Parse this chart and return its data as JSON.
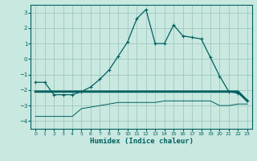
{
  "xlabel": "Humidex (Indice chaleur)",
  "xlim": [
    -0.5,
    23.5
  ],
  "ylim": [
    -4.5,
    3.5
  ],
  "yticks": [
    -4,
    -3,
    -2,
    -1,
    0,
    1,
    2,
    3
  ],
  "xticks": [
    0,
    1,
    2,
    3,
    4,
    5,
    6,
    7,
    8,
    9,
    10,
    11,
    12,
    13,
    14,
    15,
    16,
    17,
    18,
    19,
    20,
    21,
    22,
    23
  ],
  "bg_color": "#c8e8e0",
  "grid_color": "#a0c8c0",
  "line_color": "#006060",
  "line1_x": [
    0,
    1,
    2,
    3,
    4,
    5,
    6,
    7,
    8,
    9,
    10,
    11,
    12,
    13,
    14,
    15,
    16,
    17,
    18,
    19,
    20,
    21,
    22,
    23
  ],
  "line1_y": [
    -1.5,
    -1.5,
    -2.3,
    -2.3,
    -2.3,
    -2.1,
    -1.8,
    -1.3,
    -0.7,
    0.2,
    1.1,
    2.6,
    3.2,
    1.0,
    1.0,
    2.2,
    1.5,
    1.4,
    1.3,
    0.1,
    -1.1,
    -2.1,
    -2.2,
    -2.7
  ],
  "line2_x": [
    0,
    1,
    2,
    3,
    4,
    5,
    6,
    7,
    8,
    9,
    10,
    11,
    12,
    13,
    14,
    15,
    16,
    17,
    18,
    19,
    20,
    21,
    22,
    23
  ],
  "line2_y": [
    -2.1,
    -2.1,
    -2.1,
    -2.1,
    -2.1,
    -2.1,
    -2.1,
    -2.1,
    -2.1,
    -2.1,
    -2.1,
    -2.1,
    -2.1,
    -2.1,
    -2.1,
    -2.1,
    -2.1,
    -2.1,
    -2.1,
    -2.1,
    -2.1,
    -2.1,
    -2.1,
    -2.7
  ],
  "line3_x": [
    0,
    1,
    2,
    3,
    4,
    5,
    6,
    7,
    8,
    9,
    10,
    11,
    12,
    13,
    14,
    15,
    16,
    17,
    18,
    19,
    20,
    21,
    22,
    23
  ],
  "line3_y": [
    -3.7,
    -3.7,
    -3.7,
    -3.7,
    -3.7,
    -3.2,
    -3.1,
    -3.0,
    -2.9,
    -2.8,
    -2.8,
    -2.8,
    -2.8,
    -2.8,
    -2.7,
    -2.7,
    -2.7,
    -2.7,
    -2.7,
    -2.7,
    -3.0,
    -3.0,
    -2.9,
    -2.9
  ]
}
